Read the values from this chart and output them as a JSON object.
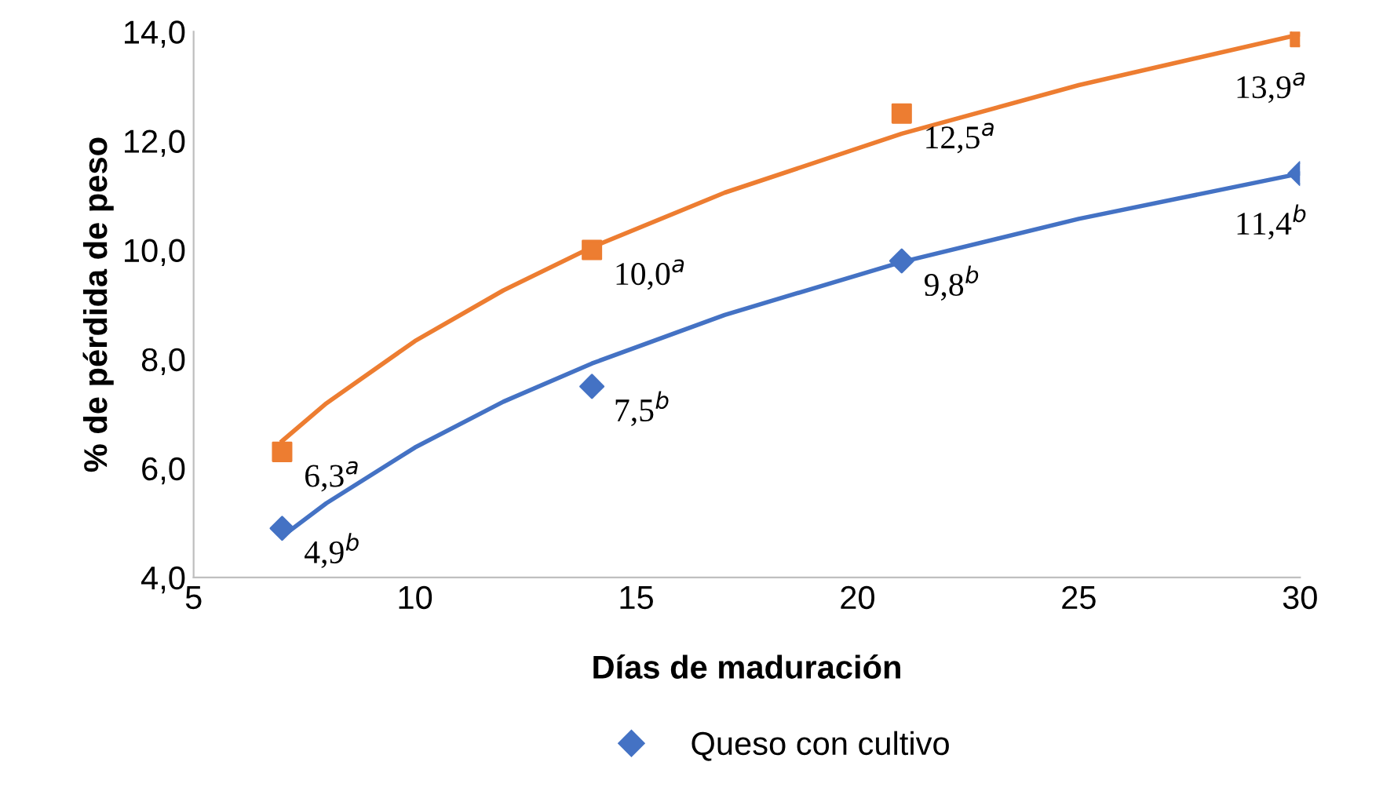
{
  "chart_data": {
    "type": "scatter",
    "xlabel": "Días de maduración",
    "ylabel": "% de pérdida de peso",
    "xlim": [
      5,
      30
    ],
    "xticks": [
      5,
      10,
      15,
      20,
      25,
      30
    ],
    "ylim": [
      4,
      14
    ],
    "yticks": [
      {
        "value": 4,
        "label": "4,0"
      },
      {
        "value": 6,
        "label": "6,0"
      },
      {
        "value": 8,
        "label": "8,0"
      },
      {
        "value": 10,
        "label": "10,0"
      },
      {
        "value": 12,
        "label": "12,0"
      },
      {
        "value": 14,
        "label": "14,0"
      }
    ],
    "grid": false,
    "legend": "bottom",
    "series": [
      {
        "name": "Queso con cultivo",
        "marker": "diamond",
        "color": "#4472c4",
        "x": [
          7,
          14,
          21,
          30
        ],
        "values": [
          4.9,
          7.5,
          9.8,
          11.4
        ],
        "value_labels": [
          "4,9$^{b}$",
          "7,5$^{b}$",
          "9,8$^{b}$",
          "11,4$^{b}$"
        ]
      },
      {
        "marker": "square",
        "color": "#ed7d31",
        "x": [
          7,
          14,
          21,
          30
        ],
        "values": [
          6.3,
          10.0,
          12.5,
          13.9
        ],
        "value_labels": [
          "6,3$^{a}$",
          "10,0$^{a}$",
          "12,5$^{a}$",
          "13,9$^{a}$"
        ]
      },
      {
        "type": "line",
        "color": "#4472c4",
        "x": [
          7,
          8,
          10,
          12,
          14,
          17,
          21,
          25,
          30
        ],
        "values": [
          4.75,
          5.36,
          6.38,
          7.22,
          7.92,
          8.81,
          9.78,
          10.57,
          11.4
        ]
      },
      {
        "type": "line",
        "color": "#ed7d31",
        "x": [
          7,
          8,
          10,
          12,
          14,
          17,
          21,
          25,
          30
        ],
        "values": [
          6.5,
          7.19,
          8.33,
          9.26,
          10.05,
          11.05,
          12.13,
          13.02,
          13.95
        ]
      }
    ]
  }
}
